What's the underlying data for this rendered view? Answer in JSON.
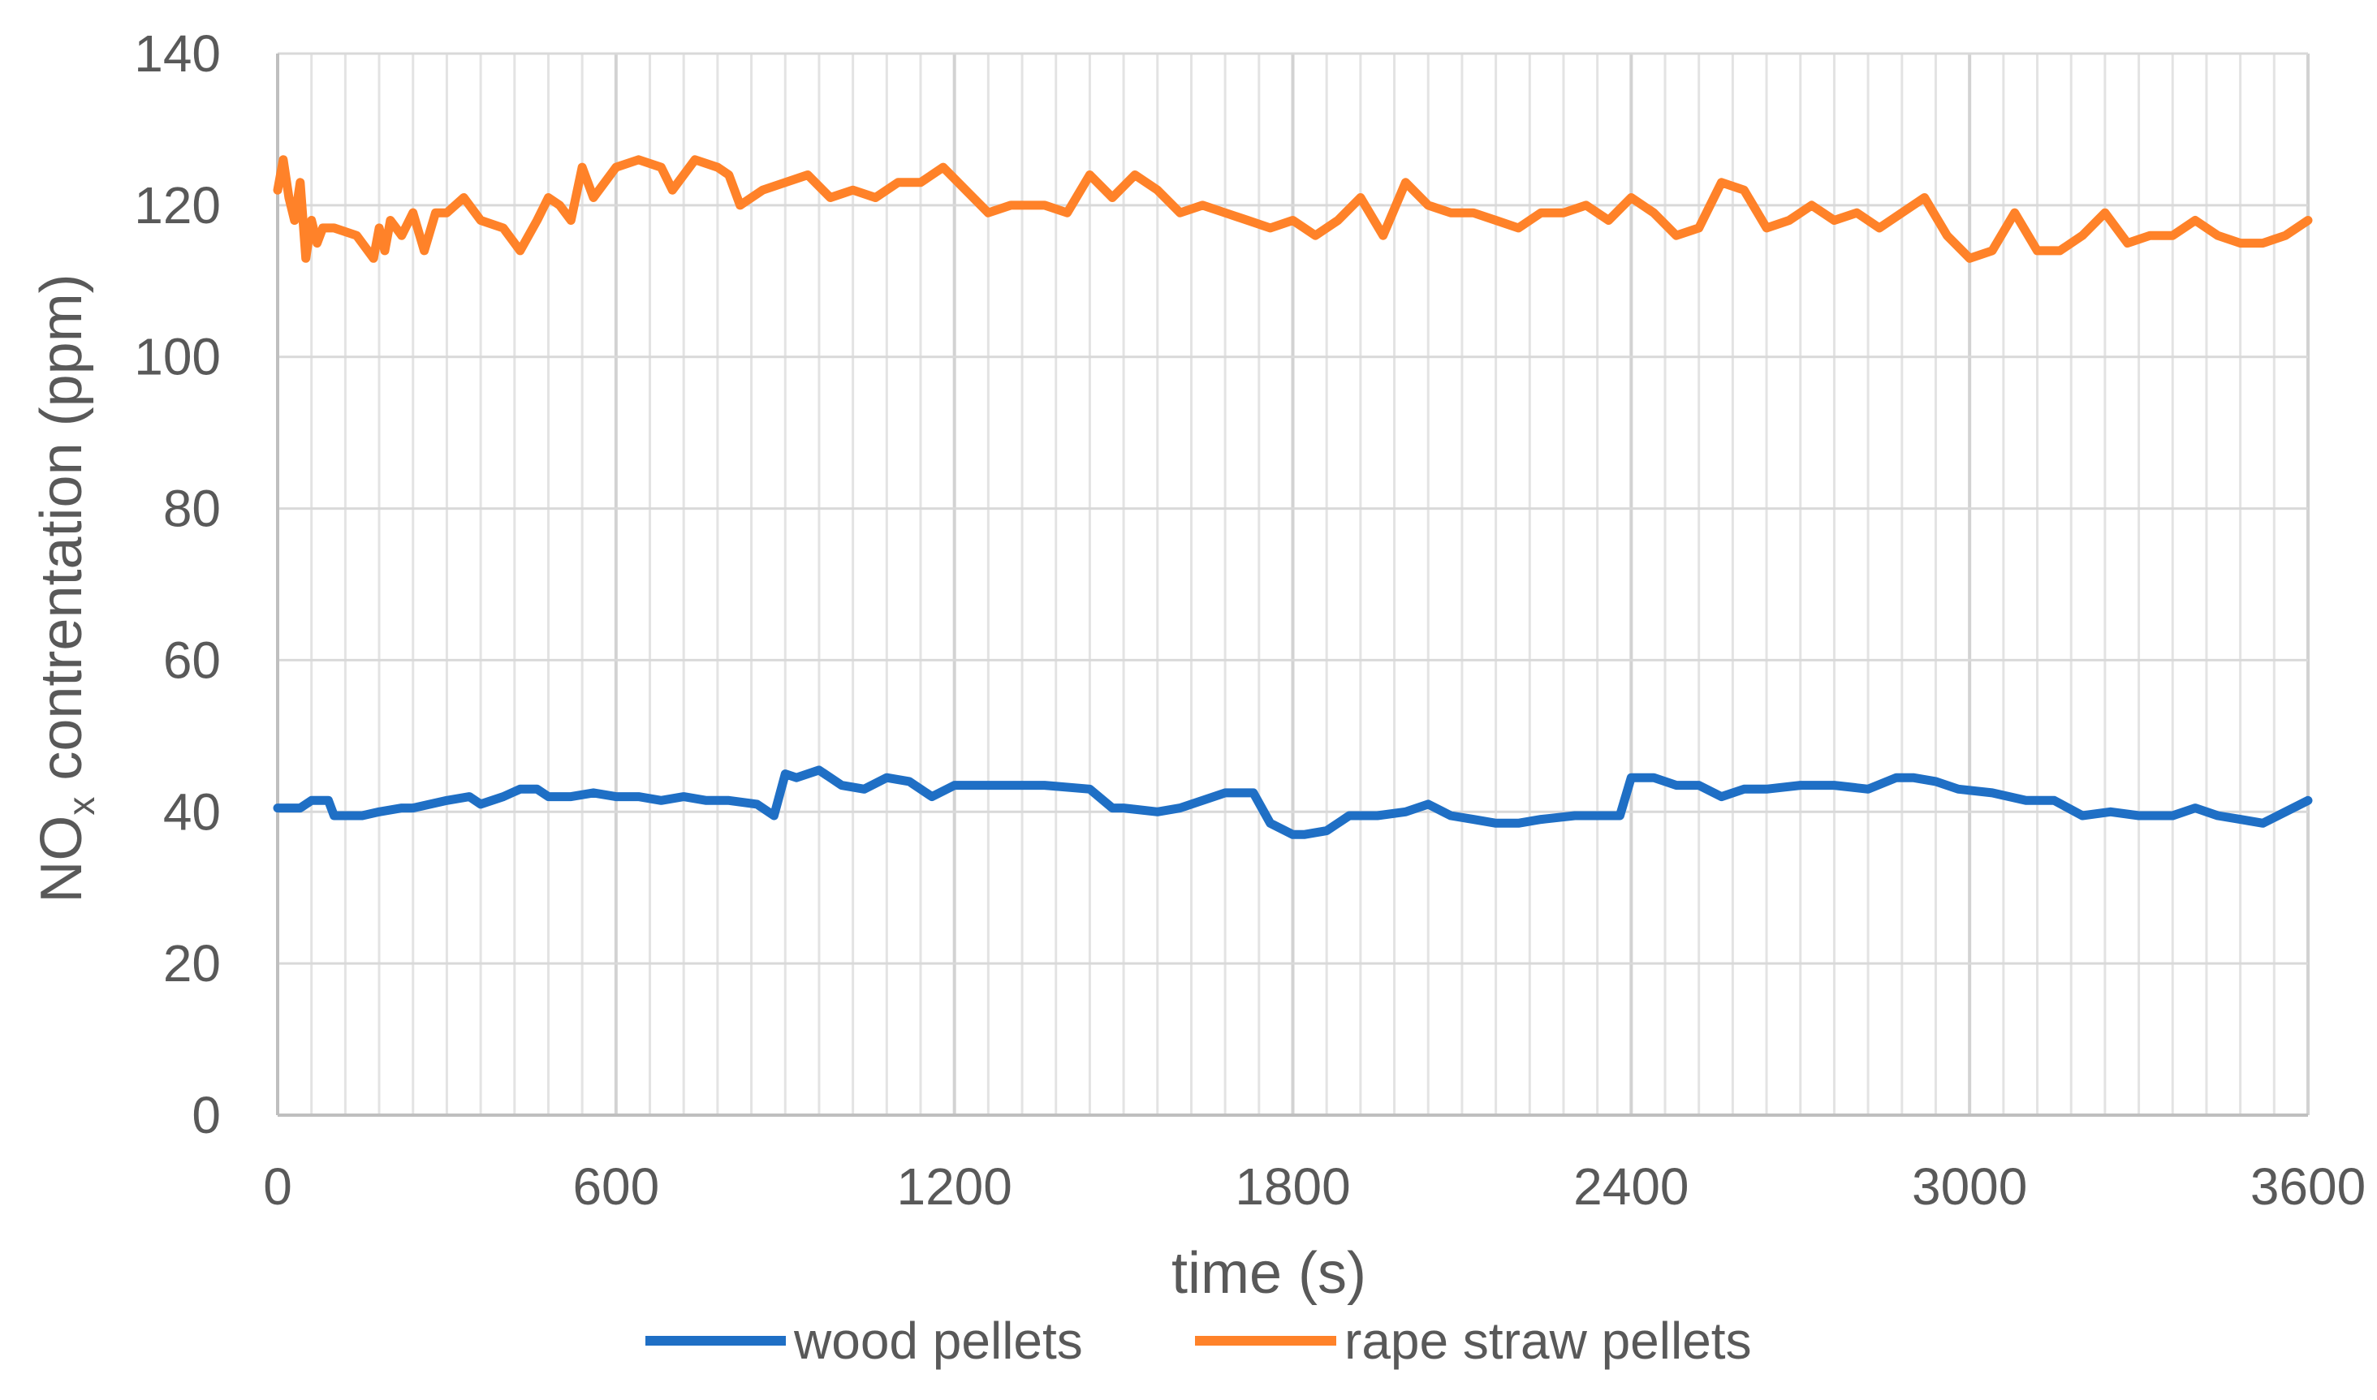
{
  "chart_data": {
    "type": "line",
    "xlabel": "time (s)",
    "ylabel_main": "NO",
    "ylabel_sub": "x",
    "ylabel_rest": " contrentation (ppm)",
    "xlim": [
      0,
      3600
    ],
    "ylim": [
      0,
      140
    ],
    "x_ticks": [
      "0",
      "600",
      "1200",
      "1800",
      "2400",
      "3000",
      "3600"
    ],
    "y_ticks": [
      "0",
      "20",
      "40",
      "60",
      "80",
      "100",
      "120",
      "140"
    ],
    "grid": true,
    "legend_position": "bottom",
    "series": [
      {
        "name": "wood pellets",
        "color": "#1F6FC5",
        "x": [
          0,
          40,
          60,
          90,
          100,
          150,
          180,
          220,
          240,
          300,
          340,
          360,
          400,
          430,
          460,
          480,
          520,
          560,
          600,
          640,
          680,
          720,
          760,
          800,
          850,
          880,
          900,
          920,
          960,
          1000,
          1040,
          1080,
          1120,
          1160,
          1200,
          1280,
          1360,
          1440,
          1480,
          1500,
          1560,
          1600,
          1680,
          1730,
          1760,
          1800,
          1820,
          1860,
          1900,
          1950,
          2000,
          2040,
          2080,
          2120,
          2160,
          2200,
          2240,
          2300,
          2360,
          2380,
          2400,
          2440,
          2480,
          2520,
          2560,
          2600,
          2640,
          2700,
          2760,
          2820,
          2870,
          2900,
          2940,
          2980,
          3040,
          3100,
          3150,
          3200,
          3250,
          3300,
          3360,
          3400,
          3440,
          3480,
          3520,
          3560,
          3600
        ],
        "y": [
          40.5,
          40.5,
          41.5,
          41.5,
          39.5,
          39.5,
          40,
          40.5,
          40.5,
          41.5,
          42,
          41,
          42,
          43,
          43,
          42,
          42,
          42.5,
          42,
          42,
          41.5,
          42,
          41.5,
          41.5,
          41,
          39.5,
          45,
          44.5,
          45.5,
          43.5,
          43,
          44.5,
          44,
          42,
          43.5,
          43.5,
          43.5,
          43,
          40.5,
          40.5,
          40,
          40.5,
          42.5,
          42.5,
          38.5,
          37,
          37,
          37.5,
          39.5,
          39.5,
          40,
          41,
          39.5,
          39,
          38.5,
          38.5,
          39,
          39.5,
          39.5,
          39.5,
          44.5,
          44.5,
          43.5,
          43.5,
          42,
          43,
          43,
          43.5,
          43.5,
          43,
          44.5,
          44.5,
          44,
          43,
          42.5,
          41.5,
          41.5,
          39.5,
          40,
          39.5,
          39.5,
          40.5,
          39.5,
          39,
          38.5,
          40,
          41.5
        ]
      },
      {
        "name": "rape straw pellets",
        "color": "#FF8229",
        "x": [
          0,
          10,
          20,
          30,
          40,
          50,
          60,
          70,
          80,
          100,
          140,
          170,
          180,
          190,
          200,
          220,
          240,
          260,
          280,
          300,
          330,
          360,
          400,
          430,
          460,
          480,
          500,
          520,
          540,
          560,
          600,
          640,
          680,
          700,
          740,
          780,
          800,
          820,
          860,
          900,
          940,
          980,
          1020,
          1060,
          1100,
          1140,
          1180,
          1220,
          1260,
          1300,
          1360,
          1400,
          1440,
          1480,
          1520,
          1560,
          1600,
          1640,
          1680,
          1720,
          1760,
          1800,
          1840,
          1880,
          1920,
          1960,
          2000,
          2040,
          2080,
          2120,
          2160,
          2200,
          2240,
          2280,
          2320,
          2360,
          2400,
          2440,
          2480,
          2520,
          2560,
          2600,
          2640,
          2680,
          2720,
          2760,
          2800,
          2840,
          2880,
          2920,
          2960,
          3000,
          3040,
          3080,
          3120,
          3160,
          3200,
          3240,
          3280,
          3320,
          3360,
          3400,
          3440,
          3480,
          3520,
          3560,
          3600
        ],
        "y": [
          122,
          126,
          121,
          118,
          123,
          113,
          118,
          115,
          117,
          117,
          116,
          113,
          117,
          114,
          118,
          116,
          119,
          114,
          119,
          119,
          121,
          118,
          117,
          114,
          118,
          121,
          120,
          118,
          125,
          121,
          125,
          126,
          125,
          122,
          126,
          125,
          124,
          120,
          122,
          123,
          124,
          121,
          122,
          121,
          123,
          123,
          125,
          122,
          119,
          120,
          120,
          119,
          124,
          121,
          124,
          122,
          119,
          120,
          119,
          118,
          117,
          118,
          116,
          118,
          121,
          116,
          123,
          120,
          119,
          119,
          118,
          117,
          119,
          119,
          120,
          118,
          121,
          119,
          116,
          117,
          123,
          122,
          117,
          118,
          120,
          118,
          119,
          117,
          119,
          121,
          116,
          113,
          114,
          119,
          114,
          114,
          116,
          119,
          115,
          116,
          116,
          118,
          116,
          115,
          115,
          116,
          118
        ]
      }
    ]
  }
}
